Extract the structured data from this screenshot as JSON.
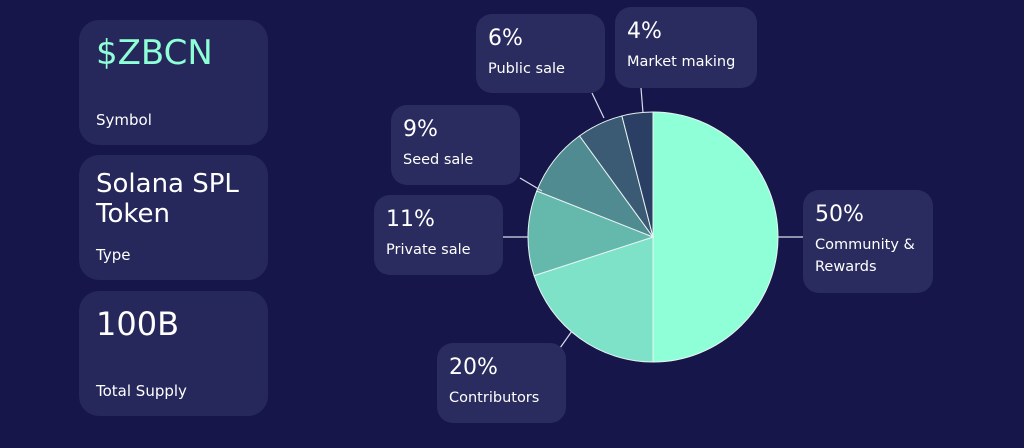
{
  "cards": [
    {
      "value": "$ZBCN",
      "label": "Symbol"
    },
    {
      "value": "Solana SPL Token",
      "label": "Type"
    },
    {
      "value": "100B",
      "label": "Total Supply"
    }
  ],
  "chart_data": {
    "type": "pie",
    "categories": [
      "Community & Rewards",
      "Contributors",
      "Private sale",
      "Seed sale",
      "Public sale",
      "Market making"
    ],
    "values": [
      50,
      20,
      11,
      9,
      6,
      4
    ],
    "value_labels": [
      "50%",
      "20%",
      "11%",
      "9%",
      "6%",
      "4%"
    ],
    "colors": [
      "#8effd6",
      "#7ee2c9",
      "#64b9ac",
      "#4f8b90",
      "#3a5b73",
      "#2a3f63"
    ]
  }
}
